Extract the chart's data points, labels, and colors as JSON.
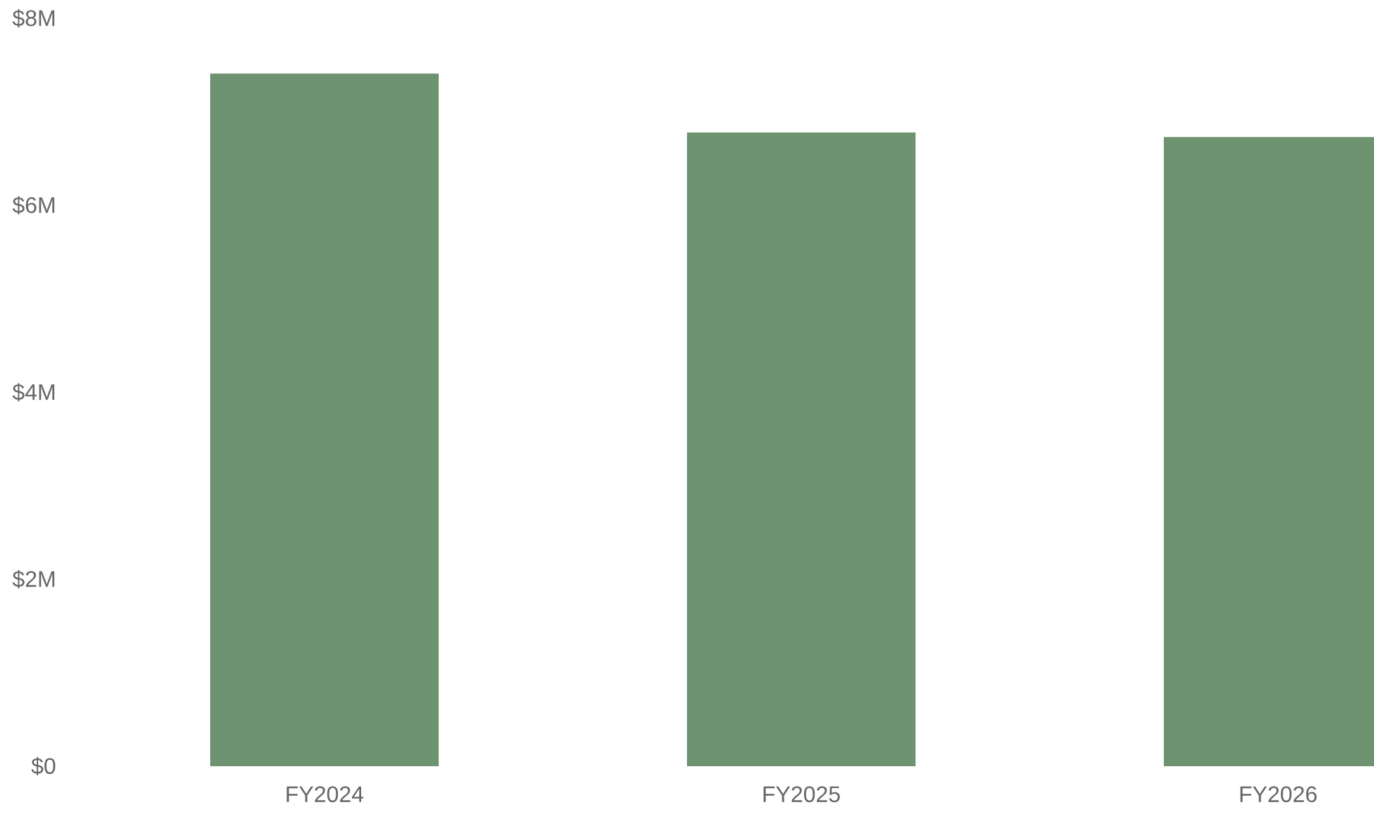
{
  "chart_data": {
    "type": "bar",
    "categories": [
      "FY2024",
      "FY2025",
      "FY2026"
    ],
    "values": [
      7.41,
      6.78,
      6.73
    ],
    "color": "#6e9370",
    "ylim": [
      0,
      8
    ],
    "yticks": [
      {
        "value": 0,
        "label": "$0"
      },
      {
        "value": 2,
        "label": "$2M"
      },
      {
        "value": 4,
        "label": "$4M"
      },
      {
        "value": 6,
        "label": "$6M"
      },
      {
        "value": 8,
        "label": "$8M"
      }
    ]
  }
}
